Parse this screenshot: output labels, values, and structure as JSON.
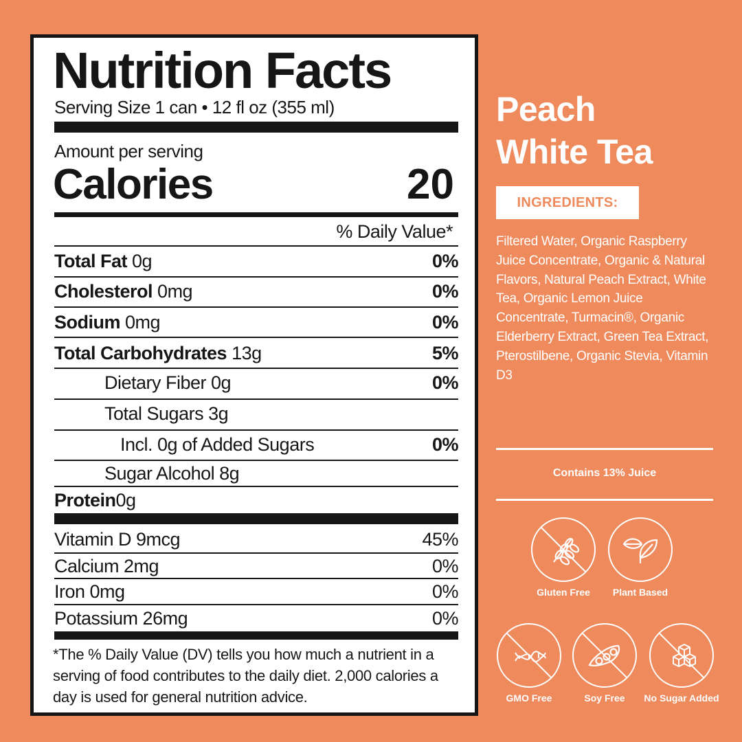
{
  "colors": {
    "background": "#ee8a5c",
    "label_ink": "#161616"
  },
  "nutrition": {
    "title": "Nutrition Facts",
    "serving": "Serving Size 1 can • 12 fl oz (355 ml)",
    "amount_per_serving": "Amount per serving",
    "calories_label": "Calories",
    "calories_value": "20",
    "daily_value_header": "% Daily Value*",
    "rows": [
      {
        "name": "Total Fat",
        "amount": "0g",
        "dv": "0%"
      },
      {
        "name": "Cholesterol",
        "amount": "0mg",
        "dv": "0%"
      },
      {
        "name": "Sodium",
        "amount": "0mg",
        "dv": "0%"
      },
      {
        "name": "Total Carbohydrates",
        "amount": "13g",
        "dv": "5%"
      },
      {
        "name": "Dietary Fiber 0g",
        "amount": "",
        "dv": "0%"
      },
      {
        "name": "Total Sugars",
        "amount": "3g",
        "dv": ""
      },
      {
        "name": "Incl. 0g of Added Sugars",
        "amount": "",
        "dv": "0%"
      },
      {
        "name": "Sugar Alcohol 8g",
        "amount": "",
        "dv": ""
      },
      {
        "name": "Protein",
        "amount": "0g",
        "dv": ""
      }
    ],
    "vitamins": [
      {
        "name": "Vitamin D 9mcg",
        "dv": "45%"
      },
      {
        "name": "Calcium 2mg",
        "dv": "0%"
      },
      {
        "name": "Iron 0mg",
        "dv": "0%"
      },
      {
        "name": "Potassium 26mg",
        "dv": "0%"
      }
    ],
    "footnote": "*The % Daily Value (DV) tells you how much a nutrient in a serving of food contributes to the daily diet. 2,000 calories a day is used for general nutrition advice."
  },
  "product": {
    "title_line1": "Peach",
    "title_line2": "White Tea",
    "ingredients_label": "INGREDIENTS:",
    "ingredients_text": "Filtered Water, Organic Raspberry Juice Concentrate, Organic & Natural Flavors, Natural Peach Extract, White Tea, Organic Lemon Juice Concentrate, Turmacin®, Organic Elderberry Extract, Green Tea Extract, Pterostilbene, Organic Stevia, Vitamin D3",
    "juice_note": "Contains 13% Juice",
    "badges": [
      {
        "label": "Gluten Free",
        "icon": "wheat-crossed-icon"
      },
      {
        "label": "Plant Based",
        "icon": "leaves-icon"
      },
      {
        "label": "GMO Free",
        "icon": "dna-crossed-icon"
      },
      {
        "label": "Soy Free",
        "icon": "soybean-crossed-icon"
      },
      {
        "label": "No Sugar Added",
        "icon": "sugar-cubes-crossed-icon"
      }
    ]
  }
}
